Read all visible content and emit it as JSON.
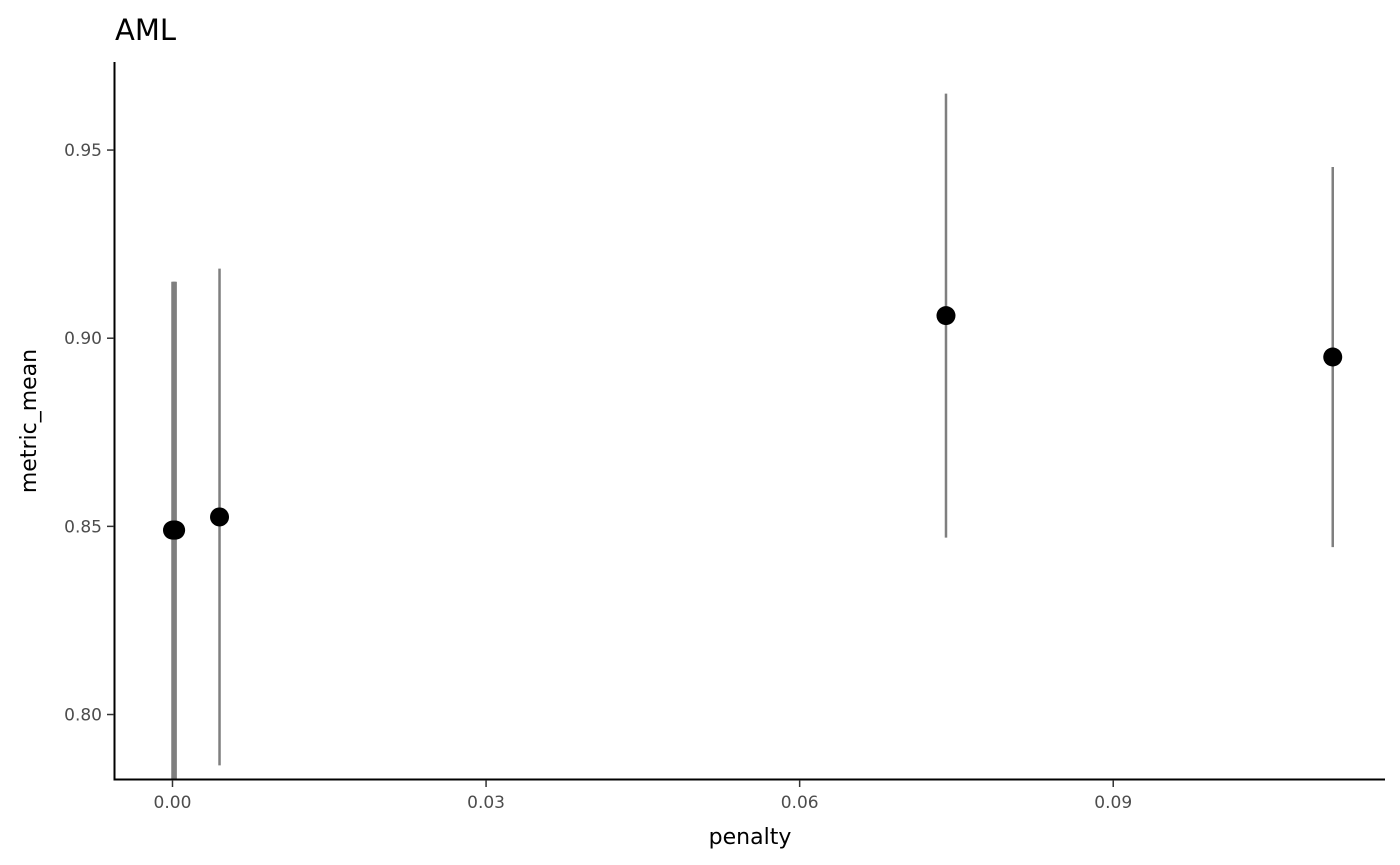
{
  "chart_data": {
    "type": "scatter",
    "title": "AML",
    "xlabel": "penalty",
    "ylabel": "metric_mean",
    "xlim": [
      -0.0055,
      0.116
    ],
    "ylim": [
      0.7826,
      0.9734
    ],
    "x_ticks": [
      {
        "value": 0.0,
        "label": "0.00"
      },
      {
        "value": 0.03,
        "label": "0.03"
      },
      {
        "value": 0.06,
        "label": "0.06"
      },
      {
        "value": 0.09,
        "label": "0.09"
      }
    ],
    "y_ticks": [
      {
        "value": 0.8,
        "label": "0.80"
      },
      {
        "value": 0.85,
        "label": "0.85"
      },
      {
        "value": 0.9,
        "label": "0.90"
      },
      {
        "value": 0.95,
        "label": "0.95"
      }
    ],
    "points": [
      {
        "x": 0.0,
        "y": 0.849,
        "ymin": 0.783,
        "ymax": 0.915
      },
      {
        "x": 0.0001,
        "y": 0.849,
        "ymin": 0.783,
        "ymax": 0.915
      },
      {
        "x": 0.0002,
        "y": 0.849,
        "ymin": 0.783,
        "ymax": 0.915
      },
      {
        "x": 0.0003,
        "y": 0.849,
        "ymin": 0.783,
        "ymax": 0.915
      },
      {
        "x": 0.0045,
        "y": 0.8525,
        "ymin": 0.7865,
        "ymax": 0.9185
      },
      {
        "x": 0.074,
        "y": 0.906,
        "ymin": 0.847,
        "ymax": 0.965
      },
      {
        "x": 0.111,
        "y": 0.895,
        "ymin": 0.8445,
        "ymax": 0.9455
      }
    ],
    "grid": false,
    "legend": "none",
    "colors": {
      "point": "#000000",
      "errorbar": "#7f7f7f",
      "axis": "#000000",
      "tick_label": "#4d4d4d"
    }
  }
}
